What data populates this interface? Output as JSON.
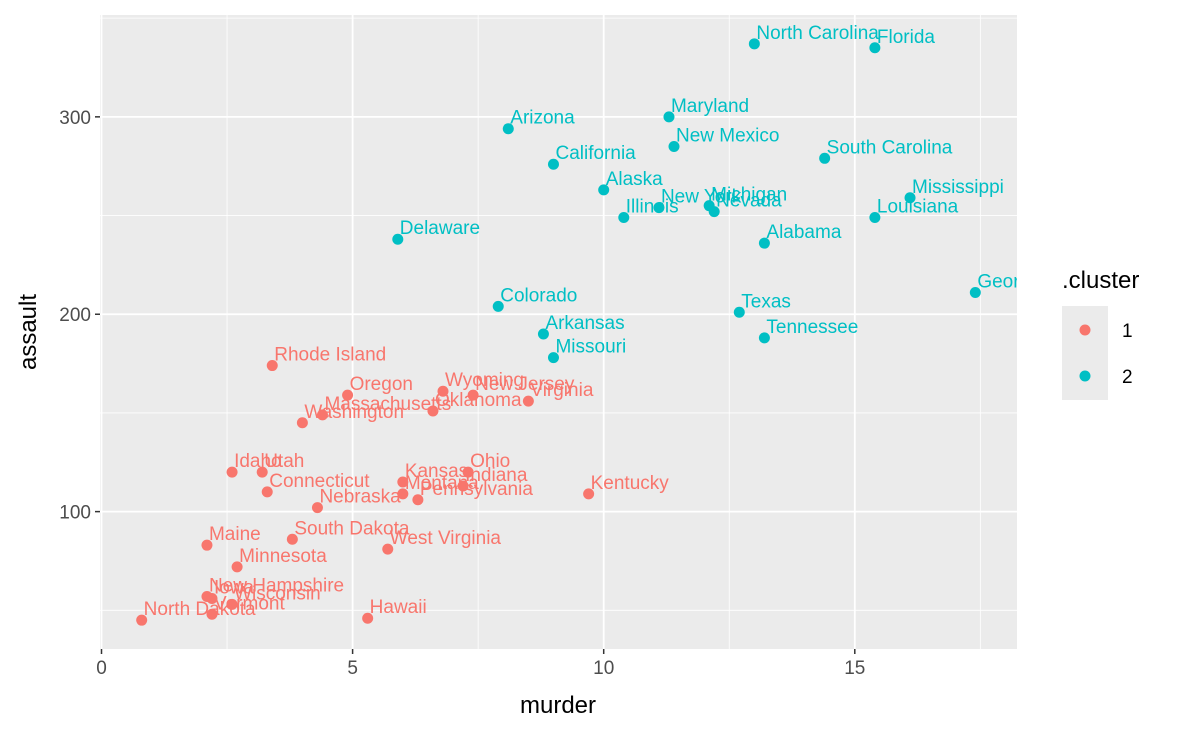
{
  "chart_data": {
    "type": "scatter",
    "x_label": "murder",
    "y_label": "assault",
    "xlim": [
      -0.03,
      18.23
    ],
    "ylim": [
      30.4,
      351.6
    ],
    "xticks": [
      0,
      5,
      10,
      15
    ],
    "yticks": [
      100,
      200,
      300
    ],
    "grid": true,
    "legend_title": ".cluster",
    "legend_position": "right",
    "series": [
      {
        "name": "1",
        "color": "#F8766D",
        "x": [
          3.3,
          5.3,
          2.6,
          7.2,
          2.2,
          6.0,
          9.7,
          2.1,
          4.4,
          2.7,
          6.0,
          4.3,
          2.1,
          7.4,
          0.8,
          7.3,
          6.6,
          4.9,
          6.3,
          3.4,
          3.8,
          3.2,
          2.2,
          8.5,
          4.0,
          5.7,
          2.6,
          6.8
        ],
        "values": [
          110,
          46,
          120,
          113,
          56,
          115,
          109,
          83,
          149,
          72,
          109,
          102,
          57,
          159,
          45,
          120,
          151,
          159,
          106,
          174,
          86,
          120,
          48,
          156,
          145,
          81,
          53,
          161
        ],
        "labels": [
          "Connecticut",
          "Hawaii",
          "Idaho",
          "Indiana",
          "Iowa",
          "Kansas",
          "Kentucky",
          "Maine",
          "Massachusetts",
          "Minnesota",
          "Montana",
          "Nebraska",
          "New Hampshire",
          "New Jersey",
          "North Dakota",
          "Ohio",
          "Oklahoma",
          "Oregon",
          "Pennsylvania",
          "Rhode Island",
          "South Dakota",
          "Utah",
          "Vermont",
          "Virginia",
          "Washington",
          "West Virginia",
          "Wisconsin",
          "Wyoming"
        ]
      },
      {
        "name": "2",
        "color": "#00BFC4",
        "x": [
          13.2,
          10.0,
          8.1,
          8.8,
          9.0,
          7.9,
          5.9,
          15.4,
          17.4,
          10.4,
          15.4,
          11.3,
          12.1,
          16.1,
          9.0,
          12.2,
          11.4,
          11.1,
          13.0,
          14.4,
          13.2,
          12.7
        ],
        "values": [
          236,
          263,
          294,
          190,
          276,
          204,
          238,
          335,
          211,
          249,
          249,
          300,
          255,
          259,
          178,
          252,
          285,
          254,
          337,
          279,
          188,
          201
        ],
        "labels": [
          "Alabama",
          "Alaska",
          "Arizona",
          "Arkansas",
          "California",
          "Colorado",
          "Delaware",
          "Florida",
          "Georgia",
          "Illinois",
          "Louisiana",
          "Maryland",
          "Michigan",
          "Mississippi",
          "Missouri",
          "Nevada",
          "New Mexico",
          "New York",
          "North Carolina",
          "South Carolina",
          "Tennessee",
          "Texas"
        ]
      }
    ]
  }
}
